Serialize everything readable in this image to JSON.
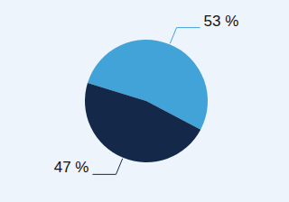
{
  "chart_data": {
    "type": "pie",
    "values": [
      53,
      47
    ],
    "value_labels": [
      "53 %",
      "47 %"
    ],
    "colors": [
      "#41a3d7",
      "#14294a"
    ],
    "data_labels": true
  }
}
